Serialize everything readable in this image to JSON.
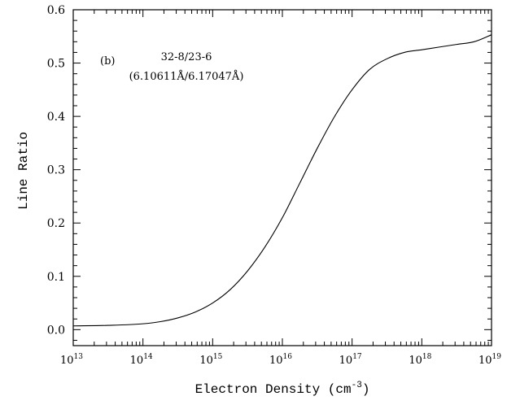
{
  "chart_data": {
    "type": "line",
    "xscale": "log",
    "xlabel": "Electron Density (cm",
    "xlabel_sup": "-3",
    "xlabel_close": ")",
    "ylabel": "Line Ratio",
    "xlim": [
      10000000000000.0,
      1e+19
    ],
    "ylim": [
      -0.03,
      0.6
    ],
    "x_ticks": [
      {
        "base": "10",
        "exp": "13",
        "value": 10000000000000.0
      },
      {
        "base": "10",
        "exp": "14",
        "value": 100000000000000.0
      },
      {
        "base": "10",
        "exp": "15",
        "value": 1000000000000000.0
      },
      {
        "base": "10",
        "exp": "16",
        "value": 1e+16
      },
      {
        "base": "10",
        "exp": "17",
        "value": 1e+17
      },
      {
        "base": "10",
        "exp": "18",
        "value": 1e+18
      },
      {
        "base": "10",
        "exp": "19",
        "value": 1e+19
      }
    ],
    "y_ticks": [
      "0.0",
      "0.1",
      "0.2",
      "0.3",
      "0.4",
      "0.5",
      "0.6"
    ],
    "y_tick_values": [
      0.0,
      0.1,
      0.2,
      0.3,
      0.4,
      0.5,
      0.6
    ],
    "annotations": {
      "panel": "(b)",
      "transition": "32-8/23-6",
      "wavelengths": "(6.10611Å/6.17047Å)"
    },
    "grid": false,
    "series": [
      {
        "x": [
          10000000000000.0,
          31600000000000.0,
          100000000000000.0,
          178000000000000.0,
          316000000000000.0,
          562000000000000.0,
          1000000000000000.0,
          1780000000000000.0,
          3160000000000000.0,
          5620000000000000.0,
          1e+16,
          1.78e+16,
          3.16e+16,
          5.62e+16,
          1e+17,
          1.78e+17,
          3.16e+17,
          5.62e+17,
          1e+18,
          1.78e+18,
          3.16e+18,
          5.62e+18,
          1e+19
        ],
        "y": [
          0.007,
          0.008,
          0.011,
          0.015,
          0.022,
          0.033,
          0.05,
          0.075,
          0.11,
          0.155,
          0.21,
          0.275,
          0.34,
          0.4,
          0.45,
          0.488,
          0.508,
          0.52,
          0.525,
          0.53,
          0.535,
          0.54,
          0.553
        ]
      }
    ]
  }
}
